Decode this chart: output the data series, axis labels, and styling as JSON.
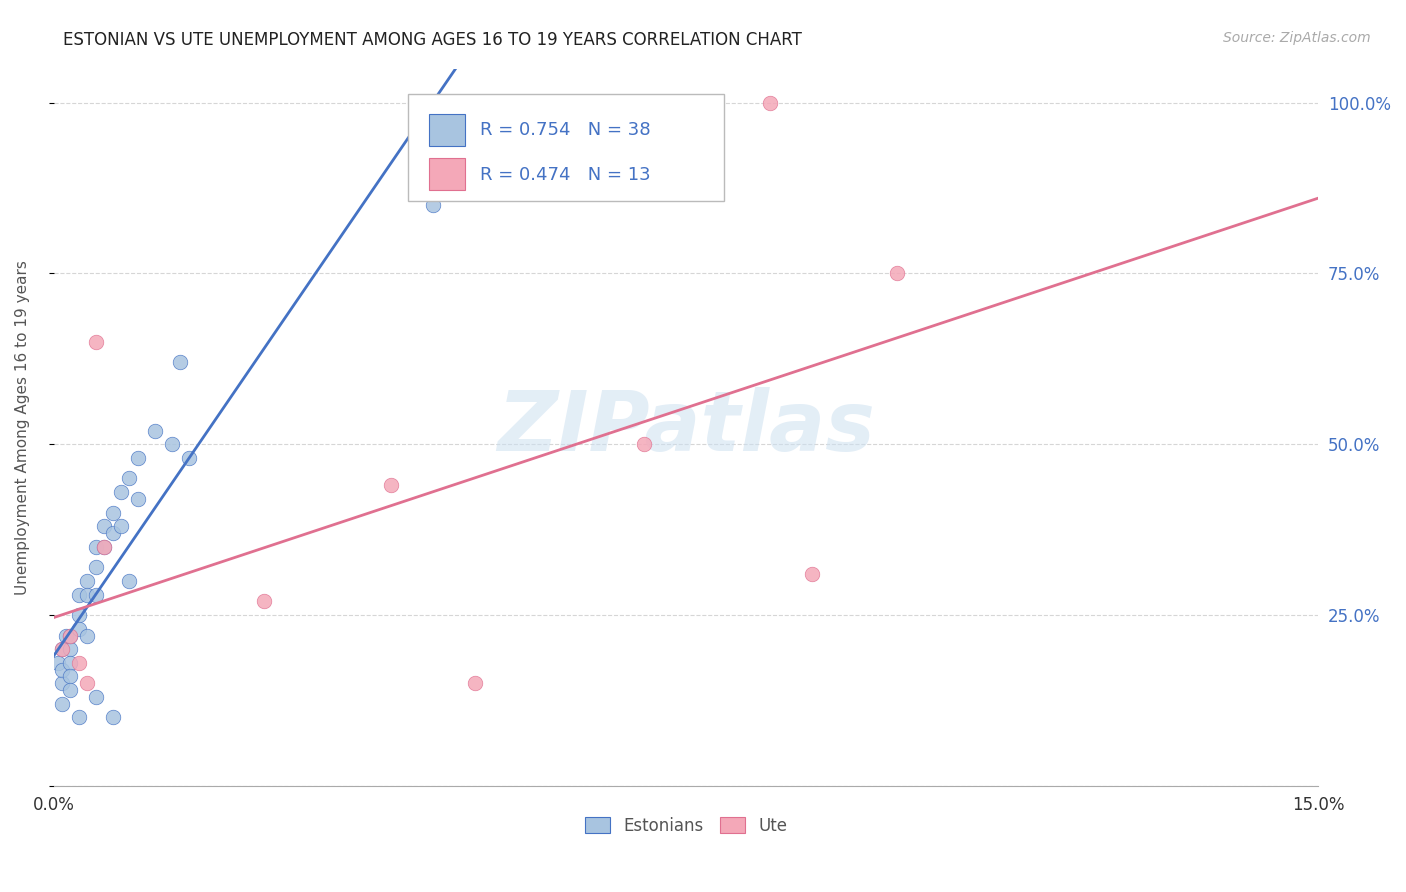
{
  "title": "ESTONIAN VS UTE UNEMPLOYMENT AMONG AGES 16 TO 19 YEARS CORRELATION CHART",
  "source": "Source: ZipAtlas.com",
  "ylabel": "Unemployment Among Ages 16 to 19 years",
  "xlim": [
    0.0,
    0.15
  ],
  "ylim": [
    0.0,
    1.05
  ],
  "x_ticks": [
    0.0,
    0.025,
    0.05,
    0.075,
    0.1,
    0.125,
    0.15
  ],
  "x_tick_labels": [
    "0.0%",
    "",
    "",
    "",
    "",
    "",
    "15.0%"
  ],
  "y_ticks": [
    0.0,
    0.25,
    0.5,
    0.75,
    1.0
  ],
  "y_tick_labels_right": [
    "",
    "25.0%",
    "50.0%",
    "75.0%",
    "100.0%"
  ],
  "estonian_R": 0.754,
  "estonian_N": 38,
  "ute_R": 0.474,
  "ute_N": 13,
  "estonian_color": "#a8c4e0",
  "ute_color": "#f4a8b8",
  "estonian_line_color": "#4472c4",
  "ute_line_color": "#e07090",
  "legend_label_color": "#4472c4",
  "watermark": "ZIPatlas",
  "estonian_x": [
    0.0005,
    0.001,
    0.001,
    0.001,
    0.0015,
    0.002,
    0.002,
    0.002,
    0.002,
    0.003,
    0.003,
    0.003,
    0.004,
    0.004,
    0.004,
    0.005,
    0.005,
    0.005,
    0.006,
    0.006,
    0.007,
    0.007,
    0.008,
    0.008,
    0.009,
    0.01,
    0.01,
    0.012,
    0.014,
    0.016,
    0.001,
    0.002,
    0.003,
    0.005,
    0.007,
    0.009,
    0.015,
    0.045
  ],
  "estonian_y": [
    0.18,
    0.2,
    0.15,
    0.17,
    0.22,
    0.2,
    0.18,
    0.22,
    0.16,
    0.25,
    0.28,
    0.23,
    0.3,
    0.28,
    0.22,
    0.32,
    0.35,
    0.28,
    0.38,
    0.35,
    0.4,
    0.37,
    0.43,
    0.38,
    0.45,
    0.48,
    0.42,
    0.52,
    0.5,
    0.48,
    0.12,
    0.14,
    0.1,
    0.13,
    0.1,
    0.3,
    0.62,
    0.85
  ],
  "ute_x": [
    0.001,
    0.002,
    0.003,
    0.004,
    0.005,
    0.006,
    0.025,
    0.04,
    0.05,
    0.07,
    0.085,
    0.09,
    0.1
  ],
  "ute_y": [
    0.2,
    0.22,
    0.18,
    0.15,
    0.65,
    0.35,
    0.27,
    0.44,
    0.15,
    0.5,
    1.0,
    0.31,
    0.75
  ]
}
